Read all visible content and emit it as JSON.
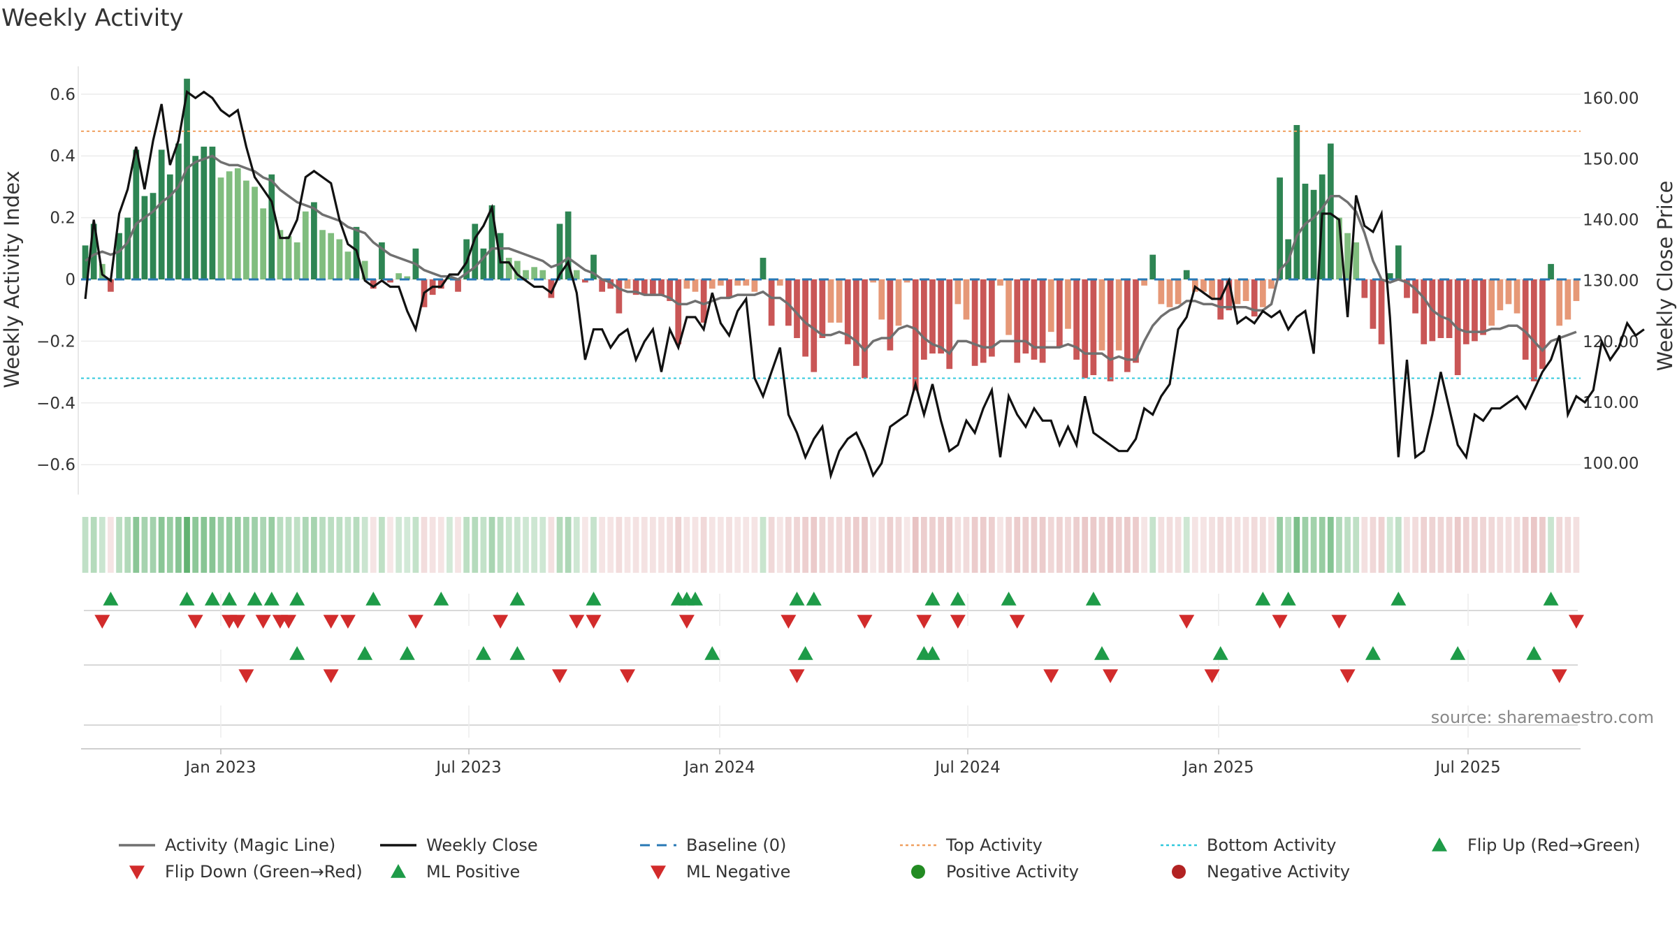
{
  "title": "Weekly Activity",
  "source": "source: sharemaestro.com",
  "colors": {
    "pos_dark": "#2e8553",
    "pos_light": "#80bd7e",
    "neg_dark": "#c95656",
    "neg_light": "#e69877",
    "magic": "#707070",
    "close": "#111111",
    "baseline": "#2878b5",
    "top": "#f0a060",
    "bottom": "#30c8dc",
    "flip_up": "#1e9b48",
    "flip_down": "#d22b2b",
    "pos_dot": "#228b22",
    "neg_dot": "#b22222"
  },
  "chart_data": {
    "type": "bar",
    "title": "Weekly Activity",
    "ylabel": "Weekly Activity Index",
    "y2label": "Weekly Close Price",
    "ylim": [
      -0.69,
      0.69
    ],
    "y2lim": [
      95.2,
      165.2
    ],
    "yticks": [
      "0.6",
      "0.4",
      "0.2",
      "0",
      "−0.2",
      "−0.4",
      "−0.6"
    ],
    "y2ticks": [
      "160.00",
      "150.00",
      "140.00",
      "130.00",
      "120.00",
      "110.00",
      "100.00"
    ],
    "xticks": [
      "Jan 2023",
      "Jul 2023",
      "Jan 2024",
      "Jul 2024",
      "Jan 2025",
      "Jul 2025"
    ],
    "top_activity": 0.48,
    "bottom_activity": -0.32,
    "baseline": 0,
    "activity": [
      0.11,
      0.18,
      0.05,
      -0.04,
      0.15,
      0.2,
      0.42,
      0.27,
      0.28,
      0.42,
      0.34,
      0.44,
      0.65,
      0.4,
      0.43,
      0.43,
      0.33,
      0.35,
      0.36,
      0.32,
      0.3,
      0.23,
      0.34,
      0.16,
      0.14,
      0.12,
      0.22,
      0.25,
      0.16,
      0.15,
      0.13,
      0.09,
      0.17,
      0.06,
      -0.03,
      0.12,
      -0.01,
      0.02,
      0.01,
      0.1,
      -0.09,
      -0.05,
      -0.03,
      0.01,
      -0.04,
      0.13,
      0.18,
      0.1,
      0.24,
      0.15,
      0.07,
      0.06,
      0.03,
      0.04,
      0.03,
      -0.06,
      0.18,
      0.22,
      0.03,
      -0.01,
      0.08,
      -0.04,
      -0.03,
      -0.11,
      -0.03,
      -0.05,
      -0.05,
      -0.05,
      -0.05,
      -0.07,
      -0.21,
      -0.03,
      -0.04,
      -0.14,
      -0.03,
      -0.02,
      -0.06,
      -0.02,
      -0.02,
      -0.04,
      0.07,
      -0.15,
      -0.02,
      -0.15,
      -0.19,
      -0.25,
      -0.3,
      -0.19,
      -0.14,
      -0.14,
      -0.21,
      -0.28,
      -0.32,
      -0.01,
      -0.13,
      -0.23,
      -0.15,
      -0.01,
      -0.36,
      -0.26,
      -0.24,
      -0.24,
      -0.29,
      -0.08,
      -0.13,
      -0.28,
      -0.27,
      -0.25,
      -0.02,
      -0.18,
      -0.27,
      -0.24,
      -0.26,
      -0.27,
      -0.17,
      -0.22,
      -0.16,
      -0.26,
      -0.32,
      -0.31,
      -0.23,
      -0.33,
      -0.23,
      -0.3,
      -0.27,
      -0.02,
      0.08,
      -0.08,
      -0.09,
      -0.08,
      0.03,
      -0.04,
      -0.04,
      -0.06,
      -0.13,
      -0.1,
      -0.08,
      -0.07,
      -0.12,
      -0.09,
      -0.03,
      0.33,
      0.13,
      0.5,
      0.31,
      0.29,
      0.34,
      0.44,
      0.2,
      0.15,
      0.12,
      -0.06,
      -0.16,
      -0.21,
      0.02,
      0.11,
      -0.06,
      -0.11,
      -0.21,
      -0.2,
      -0.19,
      -0.19,
      -0.31,
      -0.21,
      -0.2,
      -0.18,
      -0.15,
      -0.1,
      -0.08,
      -0.11,
      -0.26,
      -0.33,
      -0.29,
      0.05,
      -0.15,
      -0.13,
      -0.07
    ],
    "magic_line": [
      0.06,
      0.08,
      0.09,
      0.08,
      0.09,
      0.12,
      0.18,
      0.2,
      0.22,
      0.25,
      0.27,
      0.3,
      0.36,
      0.38,
      0.39,
      0.4,
      0.38,
      0.37,
      0.37,
      0.36,
      0.35,
      0.33,
      0.32,
      0.29,
      0.27,
      0.25,
      0.24,
      0.23,
      0.21,
      0.2,
      0.19,
      0.17,
      0.16,
      0.15,
      0.12,
      0.1,
      0.08,
      0.07,
      0.06,
      0.05,
      0.03,
      0.02,
      0.01,
      0.01,
      0.0,
      0.02,
      0.04,
      0.07,
      0.1,
      0.1,
      0.1,
      0.09,
      0.08,
      0.07,
      0.06,
      0.04,
      0.05,
      0.07,
      0.05,
      0.03,
      0.02,
      0.0,
      -0.01,
      -0.03,
      -0.04,
      -0.04,
      -0.05,
      -0.05,
      -0.05,
      -0.06,
      -0.08,
      -0.08,
      -0.07,
      -0.08,
      -0.07,
      -0.06,
      -0.06,
      -0.05,
      -0.05,
      -0.05,
      -0.04,
      -0.06,
      -0.06,
      -0.08,
      -0.11,
      -0.14,
      -0.16,
      -0.18,
      -0.18,
      -0.17,
      -0.18,
      -0.2,
      -0.23,
      -0.2,
      -0.19,
      -0.19,
      -0.16,
      -0.15,
      -0.16,
      -0.19,
      -0.21,
      -0.22,
      -0.24,
      -0.2,
      -0.2,
      -0.21,
      -0.22,
      -0.22,
      -0.2,
      -0.2,
      -0.2,
      -0.2,
      -0.22,
      -0.22,
      -0.22,
      -0.22,
      -0.21,
      -0.22,
      -0.24,
      -0.24,
      -0.24,
      -0.26,
      -0.25,
      -0.26,
      -0.26,
      -0.2,
      -0.15,
      -0.12,
      -0.1,
      -0.09,
      -0.07,
      -0.07,
      -0.08,
      -0.08,
      -0.09,
      -0.09,
      -0.09,
      -0.09,
      -0.1,
      -0.1,
      -0.08,
      0.03,
      0.06,
      0.14,
      0.18,
      0.2,
      0.23,
      0.27,
      0.27,
      0.25,
      0.22,
      0.15,
      0.06,
      0.0,
      -0.01,
      0.0,
      -0.01,
      -0.03,
      -0.06,
      -0.1,
      -0.12,
      -0.13,
      -0.16,
      -0.17,
      -0.17,
      -0.17,
      -0.16,
      -0.16,
      -0.15,
      -0.15,
      -0.17,
      -0.2,
      -0.23,
      -0.2,
      -0.19,
      -0.18,
      -0.17
    ],
    "weekly_close": [
      127,
      140,
      131,
      130,
      141,
      145,
      152,
      145,
      153,
      159,
      149,
      153,
      161,
      160,
      161,
      160,
      158,
      157,
      158,
      152,
      147,
      145,
      143,
      137,
      137,
      140,
      147,
      148,
      147,
      146,
      140,
      136,
      135,
      130,
      129,
      130,
      129,
      129,
      125,
      122,
      128,
      129,
      129,
      131,
      131,
      133,
      137,
      139,
      142,
      133,
      133,
      131,
      130,
      129,
      129,
      128,
      131,
      133,
      128,
      117,
      122,
      122,
      119,
      121,
      122,
      117,
      120,
      122,
      115,
      122,
      119,
      124,
      124,
      122,
      128,
      123,
      121,
      125,
      127,
      114,
      111,
      115,
      119,
      108,
      105,
      101,
      104,
      106,
      98,
      102,
      104,
      105,
      102,
      98,
      100,
      106,
      107,
      108,
      113,
      108,
      113,
      107,
      102,
      103,
      107,
      105,
      109,
      112,
      101,
      111,
      108,
      106,
      109,
      107,
      107,
      103,
      106,
      103,
      111,
      105,
      104,
      103,
      102,
      102,
      104,
      109,
      108,
      111,
      113,
      122,
      124,
      129,
      128,
      127,
      127,
      130,
      123,
      124,
      123,
      125,
      124,
      125,
      122,
      124,
      125,
      118,
      141,
      141,
      140,
      124,
      144,
      139,
      138,
      141,
      124,
      101,
      117,
      101,
      102,
      108,
      115,
      109,
      103,
      101,
      108,
      107,
      109,
      109,
      110,
      111,
      109,
      112,
      115,
      117,
      121,
      108,
      111,
      110,
      112,
      120,
      117,
      119,
      123,
      121,
      122
    ]
  },
  "strips": {
    "flip_up": [
      3,
      12,
      15,
      17,
      20,
      22,
      25,
      34,
      42,
      51,
      60,
      70,
      71,
      72,
      84,
      86,
      100,
      103,
      109,
      119,
      139,
      142,
      155,
      173
    ],
    "flip_down": [
      2,
      13,
      17,
      18,
      21,
      23,
      24,
      29,
      31,
      39,
      49,
      58,
      60,
      71,
      83,
      92,
      99,
      103,
      110,
      130,
      141,
      148,
      176
    ],
    "ml_positive": [
      25,
      33,
      38,
      47,
      51,
      74,
      85,
      99,
      100,
      120,
      134,
      152,
      162,
      171
    ],
    "ml_negative": [
      19,
      29,
      56,
      64,
      84,
      114,
      121,
      133,
      149,
      174
    ]
  },
  "legend": [
    {
      "label": "Activity (Magic Line)",
      "kind": "line-gray"
    },
    {
      "label": "Weekly Close",
      "kind": "line-black"
    },
    {
      "label": "Baseline (0)",
      "kind": "dash-blue"
    },
    {
      "label": "Top Activity",
      "kind": "dot-orange"
    },
    {
      "label": "Bottom Activity",
      "kind": "dot-cyan"
    },
    {
      "label": "Flip Up (Red→Green)",
      "kind": "tri-up"
    },
    {
      "label": "Flip Down (Green→Red)",
      "kind": "tri-down"
    },
    {
      "label": "ML Positive",
      "kind": "tri-up"
    },
    {
      "label": "ML Negative",
      "kind": "tri-down"
    },
    {
      "label": "Positive Activity",
      "kind": "dot-green"
    },
    {
      "label": "Negative Activity",
      "kind": "dot-red"
    }
  ]
}
